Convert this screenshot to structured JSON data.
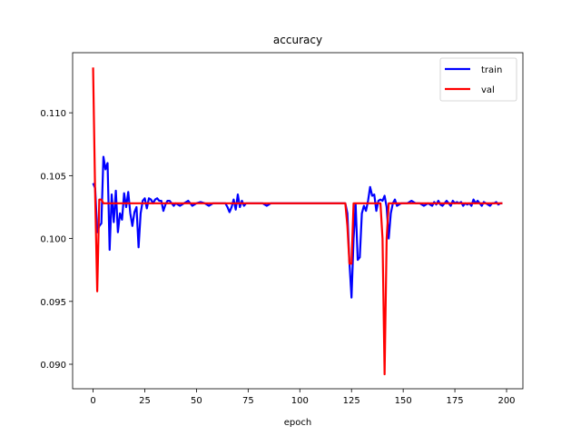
{
  "chart_data": {
    "type": "line",
    "title": "accuracy",
    "xlabel": "epoch",
    "ylabel": "",
    "xlim": [
      -9.9,
      207.9
    ],
    "ylim": [
      0.08805,
      0.11478
    ],
    "xticks": [
      0,
      25,
      50,
      75,
      100,
      125,
      150,
      175,
      200
    ],
    "yticks": [
      0.09,
      0.095,
      0.1,
      0.105,
      0.11
    ],
    "ytick_labels": [
      "0.090",
      "0.095",
      "0.100",
      "0.105",
      "0.110"
    ],
    "grid": false,
    "legend_position": "top-right",
    "series": [
      {
        "name": "train",
        "color": "#0000ff",
        "points": [
          [
            0,
            0.1044
          ],
          [
            1,
            0.104
          ],
          [
            2,
            0.1005
          ],
          [
            3,
            0.101
          ],
          [
            4,
            0.1012
          ],
          [
            5,
            0.1065
          ],
          [
            6,
            0.1055
          ],
          [
            7,
            0.106
          ],
          [
            8,
            0.0991
          ],
          [
            9,
            0.1035
          ],
          [
            10,
            0.1013
          ],
          [
            11,
            0.1038
          ],
          [
            12,
            0.1005
          ],
          [
            13,
            0.102
          ],
          [
            14,
            0.1015
          ],
          [
            15,
            0.1036
          ],
          [
            16,
            0.1025
          ],
          [
            17,
            0.1037
          ],
          [
            18,
            0.102
          ],
          [
            19,
            0.101
          ],
          [
            20,
            0.1021
          ],
          [
            21,
            0.1025
          ],
          [
            22,
            0.0993
          ],
          [
            23,
            0.102
          ],
          [
            24,
            0.103
          ],
          [
            25,
            0.1032
          ],
          [
            26,
            0.1024
          ],
          [
            27,
            0.1032
          ],
          [
            28,
            0.1031
          ],
          [
            29,
            0.1028
          ],
          [
            30,
            0.1031
          ],
          [
            31,
            0.1032
          ],
          [
            32,
            0.103
          ],
          [
            33,
            0.103
          ],
          [
            34,
            0.1022
          ],
          [
            35,
            0.1027
          ],
          [
            36,
            0.103
          ],
          [
            37,
            0.103
          ],
          [
            38,
            0.1028
          ],
          [
            39,
            0.1026
          ],
          [
            40,
            0.1028
          ],
          [
            42,
            0.1026
          ],
          [
            44,
            0.1028
          ],
          [
            46,
            0.103
          ],
          [
            48,
            0.1026
          ],
          [
            50,
            0.1028
          ],
          [
            52,
            0.1029
          ],
          [
            54,
            0.1028
          ],
          [
            56,
            0.1026
          ],
          [
            58,
            0.1028
          ],
          [
            60,
            0.1028
          ],
          [
            62,
            0.1028
          ],
          [
            64,
            0.1028
          ],
          [
            65,
            0.1025
          ],
          [
            66,
            0.1021
          ],
          [
            67,
            0.1025
          ],
          [
            68,
            0.1031
          ],
          [
            69,
            0.1023
          ],
          [
            70,
            0.1035
          ],
          [
            71,
            0.1025
          ],
          [
            72,
            0.103
          ],
          [
            73,
            0.1026
          ],
          [
            74,
            0.1028
          ],
          [
            76,
            0.1028
          ],
          [
            78,
            0.1028
          ],
          [
            80,
            0.1028
          ],
          [
            82,
            0.1028
          ],
          [
            84,
            0.1026
          ],
          [
            86,
            0.1028
          ],
          [
            88,
            0.1028
          ],
          [
            90,
            0.1028
          ],
          [
            100,
            0.1028
          ],
          [
            110,
            0.1028
          ],
          [
            120,
            0.1028
          ],
          [
            122,
            0.1028
          ],
          [
            123,
            0.102
          ],
          [
            124,
            0.0981
          ],
          [
            125,
            0.0953
          ],
          [
            126,
            0.1
          ],
          [
            127,
            0.1027
          ],
          [
            128,
            0.0983
          ],
          [
            129,
            0.0985
          ],
          [
            130,
            0.102
          ],
          [
            131,
            0.1026
          ],
          [
            132,
            0.1022
          ],
          [
            133,
            0.103
          ],
          [
            134,
            0.1041
          ],
          [
            135,
            0.1034
          ],
          [
            136,
            0.1035
          ],
          [
            137,
            0.1022
          ],
          [
            138,
            0.103
          ],
          [
            139,
            0.1031
          ],
          [
            140,
            0.103
          ],
          [
            141,
            0.1034
          ],
          [
            142,
            0.1025
          ],
          [
            143,
            0.1
          ],
          [
            144,
            0.102
          ],
          [
            145,
            0.1028
          ],
          [
            146,
            0.1031
          ],
          [
            147,
            0.1026
          ],
          [
            148,
            0.1027
          ],
          [
            149,
            0.1028
          ],
          [
            150,
            0.1028
          ],
          [
            152,
            0.1028
          ],
          [
            154,
            0.103
          ],
          [
            156,
            0.1028
          ],
          [
            158,
            0.1028
          ],
          [
            160,
            0.1026
          ],
          [
            162,
            0.1028
          ],
          [
            164,
            0.1026
          ],
          [
            165,
            0.1029
          ],
          [
            166,
            0.1027
          ],
          [
            167,
            0.103
          ],
          [
            168,
            0.1027
          ],
          [
            169,
            0.1026
          ],
          [
            170,
            0.1028
          ],
          [
            171,
            0.103
          ],
          [
            172,
            0.1028
          ],
          [
            173,
            0.1026
          ],
          [
            174,
            0.103
          ],
          [
            175,
            0.1028
          ],
          [
            176,
            0.1029
          ],
          [
            177,
            0.1028
          ],
          [
            178,
            0.1029
          ],
          [
            179,
            0.1026
          ],
          [
            180,
            0.1028
          ],
          [
            181,
            0.1027
          ],
          [
            182,
            0.1028
          ],
          [
            183,
            0.1026
          ],
          [
            184,
            0.1031
          ],
          [
            185,
            0.1028
          ],
          [
            186,
            0.103
          ],
          [
            187,
            0.1028
          ],
          [
            188,
            0.1026
          ],
          [
            189,
            0.1029
          ],
          [
            190,
            0.1028
          ],
          [
            191,
            0.1027
          ],
          [
            192,
            0.1026
          ],
          [
            193,
            0.1028
          ],
          [
            194,
            0.1028
          ],
          [
            195,
            0.1029
          ],
          [
            196,
            0.1027
          ],
          [
            197,
            0.1028
          ],
          [
            198,
            0.1028
          ]
        ]
      },
      {
        "name": "val",
        "color": "#ff0000",
        "points": [
          [
            0,
            0.1136
          ],
          [
            1,
            0.1035
          ],
          [
            2,
            0.0958
          ],
          [
            3,
            0.1031
          ],
          [
            4,
            0.1031
          ],
          [
            5,
            0.1028
          ],
          [
            6,
            0.1028
          ],
          [
            10,
            0.1028
          ],
          [
            20,
            0.1028
          ],
          [
            30,
            0.1028
          ],
          [
            40,
            0.1028
          ],
          [
            50,
            0.1028
          ],
          [
            60,
            0.1028
          ],
          [
            70,
            0.1028
          ],
          [
            80,
            0.1028
          ],
          [
            90,
            0.1028
          ],
          [
            100,
            0.1028
          ],
          [
            110,
            0.1028
          ],
          [
            120,
            0.1028
          ],
          [
            122,
            0.1028
          ],
          [
            123,
            0.101
          ],
          [
            124,
            0.098
          ],
          [
            125,
            0.098
          ],
          [
            126,
            0.1028
          ],
          [
            127,
            0.1028
          ],
          [
            130,
            0.1028
          ],
          [
            135,
            0.1028
          ],
          [
            138,
            0.1028
          ],
          [
            139,
            0.1028
          ],
          [
            140,
            0.1
          ],
          [
            141,
            0.0892
          ],
          [
            142,
            0.1
          ],
          [
            143,
            0.1028
          ],
          [
            144,
            0.1028
          ],
          [
            150,
            0.1028
          ],
          [
            160,
            0.1028
          ],
          [
            170,
            0.1028
          ],
          [
            180,
            0.1028
          ],
          [
            190,
            0.1028
          ],
          [
            198,
            0.1028
          ]
        ]
      }
    ]
  }
}
